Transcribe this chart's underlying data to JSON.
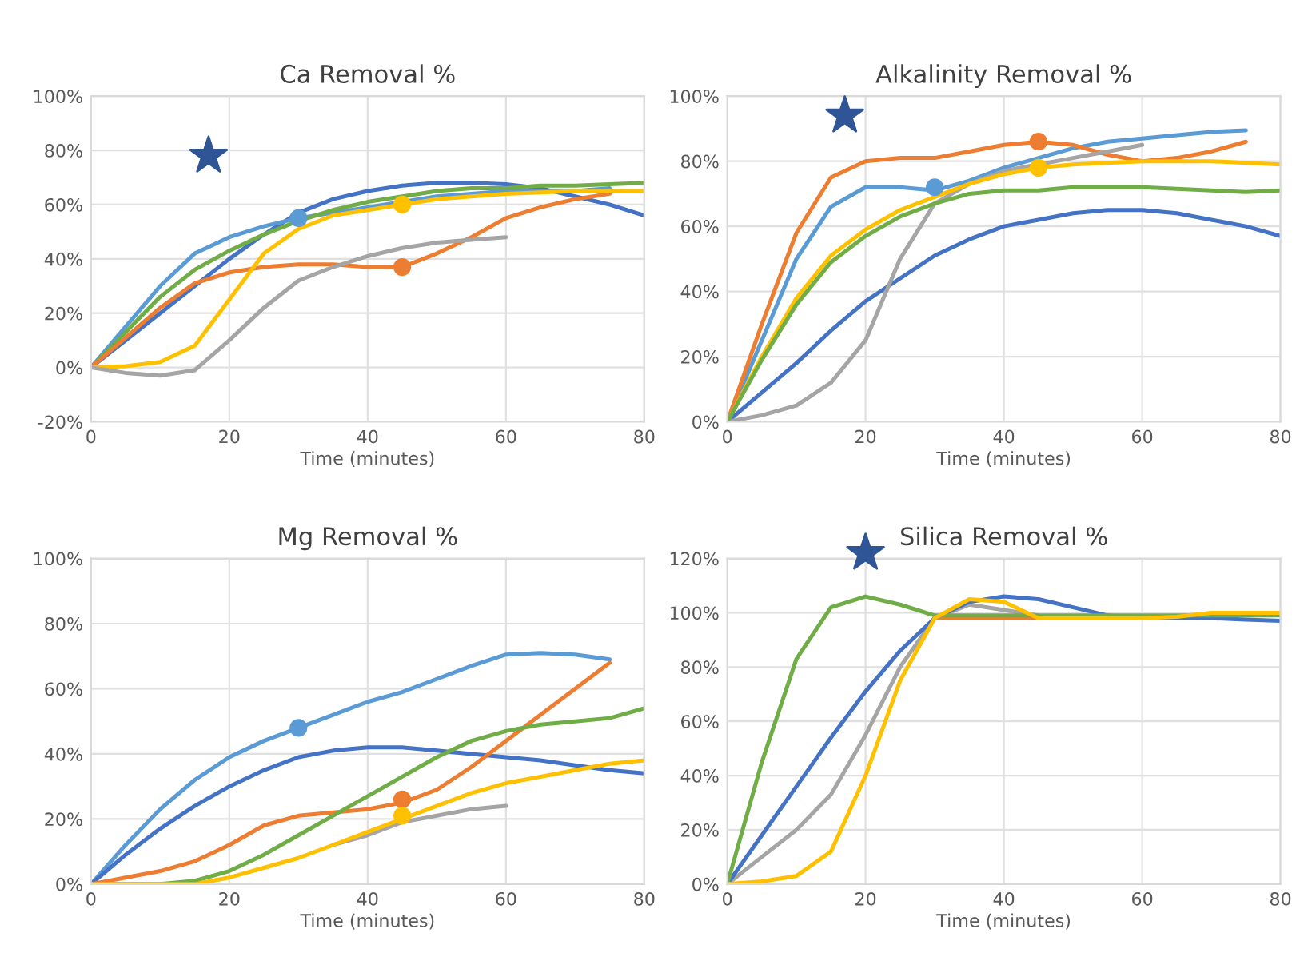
{
  "chart_data": [
    {
      "type": "line",
      "title": "Ca Removal %",
      "xlabel": "Time (minutes)",
      "x": [
        0,
        5,
        10,
        15,
        20,
        25,
        30,
        35,
        40,
        45,
        50,
        55,
        60,
        65,
        70,
        75,
        80
      ],
      "xlim": [
        0,
        80
      ],
      "xticks": [
        0,
        20,
        40,
        60,
        80
      ],
      "ylim": [
        -20,
        100
      ],
      "yticks": [
        {
          "value": -20,
          "label": "-20%"
        },
        {
          "value": 0,
          "label": "0%"
        },
        {
          "value": 20,
          "label": "20%"
        },
        {
          "value": 40,
          "label": "40%"
        },
        {
          "value": 60,
          "label": "60%"
        },
        {
          "value": 80,
          "label": "80%"
        },
        {
          "value": 100,
          "label": "100%"
        }
      ],
      "grid": true,
      "marker": "none",
      "line_style": "solid",
      "series": [
        {
          "color": "#4472c4",
          "values": [
            0,
            10,
            20,
            30,
            40,
            49,
            57,
            62,
            65,
            67,
            68,
            68,
            67.5,
            66,
            63,
            60,
            56
          ]
        },
        {
          "color": "#5b9bd5",
          "values": [
            0,
            15,
            30,
            42,
            48,
            52,
            55,
            57,
            59,
            61,
            63,
            64,
            65,
            65,
            65,
            66,
            null
          ]
        },
        {
          "color": "#70ad47",
          "values": [
            0,
            13,
            26,
            36,
            43,
            49,
            54,
            58,
            61,
            63,
            65,
            66,
            66,
            67,
            67,
            67.5,
            68
          ]
        },
        {
          "color": "#ed7d31",
          "values": [
            0,
            11,
            22,
            31,
            35,
            37,
            38,
            38,
            37,
            37,
            42,
            48,
            55,
            59,
            62,
            64,
            null
          ]
        },
        {
          "color": "#ffc000",
          "values": [
            0,
            0.5,
            2,
            8,
            25,
            42,
            51,
            56,
            58,
            60,
            62,
            63,
            64,
            64.5,
            65,
            65,
            65
          ]
        },
        {
          "color": "#a5a5a5",
          "values": [
            0,
            -2,
            -3,
            -1,
            10,
            22,
            32,
            37,
            41,
            44,
            46,
            47,
            48,
            null,
            null,
            null,
            null
          ]
        },
        {
          "type": "scatter",
          "marker": "circle",
          "color": "#5b9bd5",
          "values": [
            null,
            null,
            null,
            null,
            null,
            null,
            55,
            null,
            null,
            null,
            null,
            null,
            null,
            null,
            null,
            null,
            null
          ]
        },
        {
          "type": "scatter",
          "marker": "circle",
          "color": "#ffc000",
          "values": [
            null,
            null,
            null,
            null,
            null,
            null,
            null,
            null,
            null,
            60,
            null,
            null,
            null,
            null,
            null,
            null,
            null
          ]
        },
        {
          "type": "scatter",
          "marker": "circle",
          "color": "#ed7d31",
          "values": [
            null,
            null,
            null,
            null,
            null,
            null,
            null,
            null,
            null,
            37,
            null,
            null,
            null,
            null,
            null,
            null,
            null
          ]
        }
      ]
    },
    {
      "type": "line",
      "title": "Alkalinity Removal %",
      "xlabel": "Time (minutes)",
      "x": [
        0,
        5,
        10,
        15,
        20,
        25,
        30,
        35,
        40,
        45,
        50,
        55,
        60,
        65,
        70,
        75,
        80
      ],
      "xlim": [
        0,
        80
      ],
      "xticks": [
        0,
        20,
        40,
        60,
        80
      ],
      "ylim": [
        0,
        100
      ],
      "yticks": [
        {
          "value": 0,
          "label": "0%"
        },
        {
          "value": 20,
          "label": "20%"
        },
        {
          "value": 40,
          "label": "40%"
        },
        {
          "value": 60,
          "label": "60%"
        },
        {
          "value": 80,
          "label": "80%"
        },
        {
          "value": 100,
          "label": "100%"
        }
      ],
      "grid": true,
      "marker": "none",
      "line_style": "solid",
      "series": [
        {
          "color": "#4472c4",
          "values": [
            0,
            9,
            18,
            28,
            37,
            44,
            51,
            56,
            60,
            62,
            64,
            65,
            65,
            64,
            62,
            60,
            57
          ]
        },
        {
          "color": "#5b9bd5",
          "values": [
            0,
            25,
            50,
            66,
            72,
            72,
            71,
            74,
            78,
            81,
            84,
            86,
            87,
            88,
            89,
            89.5,
            null
          ]
        },
        {
          "color": "#ed7d31",
          "values": [
            0,
            30,
            58,
            75,
            80,
            81,
            81,
            83,
            85,
            86,
            85,
            82,
            80,
            81,
            83,
            86,
            null
          ]
        },
        {
          "color": "#a5a5a5",
          "values": [
            0,
            2,
            5,
            12,
            25,
            50,
            67,
            73,
            77,
            79,
            81,
            83,
            85,
            null,
            null,
            null,
            null
          ]
        },
        {
          "color": "#ffc000",
          "values": [
            0,
            20,
            38,
            51,
            59,
            65,
            69,
            73,
            76,
            78,
            79,
            79.5,
            80,
            80,
            80,
            79.5,
            79
          ]
        },
        {
          "color": "#70ad47",
          "values": [
            0,
            19,
            36,
            49,
            57,
            63,
            67,
            70,
            71,
            71,
            72,
            72,
            72,
            71.5,
            71,
            70.5,
            71
          ]
        },
        {
          "type": "scatter",
          "marker": "circle",
          "color": "#ed7d31",
          "values": [
            null,
            null,
            null,
            null,
            null,
            null,
            null,
            null,
            null,
            86,
            null,
            null,
            null,
            null,
            null,
            null,
            null
          ]
        },
        {
          "type": "scatter",
          "marker": "circle",
          "color": "#5b9bd5",
          "values": [
            null,
            null,
            null,
            null,
            null,
            null,
            72,
            null,
            null,
            null,
            null,
            null,
            null,
            null,
            null,
            null,
            null
          ]
        },
        {
          "type": "scatter",
          "marker": "circle",
          "color": "#ffc000",
          "values": [
            null,
            null,
            null,
            null,
            null,
            null,
            null,
            null,
            null,
            78,
            null,
            null,
            null,
            null,
            null,
            null,
            null
          ]
        }
      ]
    },
    {
      "type": "line",
      "title": "Mg Removal %",
      "xlabel": "Time (minutes)",
      "x": [
        0,
        5,
        10,
        15,
        20,
        25,
        30,
        35,
        40,
        45,
        50,
        55,
        60,
        65,
        70,
        75,
        80
      ],
      "xlim": [
        0,
        80
      ],
      "xticks": [
        0,
        20,
        40,
        60,
        80
      ],
      "ylim": [
        0,
        100
      ],
      "yticks": [
        {
          "value": 0,
          "label": "0%"
        },
        {
          "value": 20,
          "label": "20%"
        },
        {
          "value": 40,
          "label": "40%"
        },
        {
          "value": 60,
          "label": "60%"
        },
        {
          "value": 80,
          "label": "80%"
        },
        {
          "value": 100,
          "label": "100%"
        }
      ],
      "grid": true,
      "marker": "none",
      "line_style": "solid",
      "series": [
        {
          "color": "#5b9bd5",
          "values": [
            0,
            12,
            23,
            32,
            39,
            44,
            48,
            52,
            56,
            59,
            63,
            67,
            70.5,
            71,
            70.5,
            69,
            null
          ]
        },
        {
          "color": "#4472c4",
          "values": [
            0,
            9,
            17,
            24,
            30,
            35,
            39,
            41,
            42,
            42,
            41,
            40,
            39,
            38,
            36.5,
            35,
            34
          ]
        },
        {
          "color": "#ed7d31",
          "values": [
            0,
            2,
            4,
            7,
            12,
            18,
            21,
            22,
            23,
            25,
            29,
            36,
            44,
            52,
            60,
            68,
            null
          ]
        },
        {
          "color": "#70ad47",
          "values": [
            0,
            0,
            0,
            1,
            4,
            9,
            15,
            21,
            27,
            33,
            39,
            44,
            47,
            49,
            50,
            51,
            54
          ]
        },
        {
          "color": "#a5a5a5",
          "values": [
            null,
            null,
            null,
            null,
            null,
            null,
            null,
            12,
            15,
            19,
            21,
            23,
            24,
            null,
            null,
            null,
            null
          ]
        },
        {
          "color": "#ffc000",
          "values": [
            0,
            0,
            0,
            0,
            2,
            5,
            8,
            12,
            16,
            20,
            24,
            28,
            31,
            33,
            35,
            37,
            38
          ]
        },
        {
          "type": "scatter",
          "marker": "circle",
          "color": "#5b9bd5",
          "values": [
            null,
            null,
            null,
            null,
            null,
            null,
            48,
            null,
            null,
            null,
            null,
            null,
            null,
            null,
            null,
            null,
            null
          ]
        },
        {
          "type": "scatter",
          "marker": "circle",
          "color": "#ed7d31",
          "values": [
            null,
            null,
            null,
            null,
            null,
            null,
            null,
            null,
            null,
            26,
            null,
            null,
            null,
            null,
            null,
            null,
            null
          ]
        },
        {
          "type": "scatter",
          "marker": "circle",
          "color": "#ffc000",
          "values": [
            null,
            null,
            null,
            null,
            null,
            null,
            null,
            null,
            null,
            21,
            null,
            null,
            null,
            null,
            null,
            null,
            null
          ]
        }
      ]
    },
    {
      "type": "line",
      "title": "Silica Removal %",
      "xlabel": "Time (minutes)",
      "x": [
        0,
        5,
        10,
        15,
        20,
        25,
        30,
        35,
        40,
        45,
        50,
        55,
        60,
        65,
        70,
        75,
        80
      ],
      "xlim": [
        0,
        80
      ],
      "xticks": [
        0,
        20,
        40,
        60,
        80
      ],
      "ylim": [
        0,
        120
      ],
      "yticks": [
        {
          "value": 0,
          "label": "0%"
        },
        {
          "value": 20,
          "label": "20%"
        },
        {
          "value": 40,
          "label": "40%"
        },
        {
          "value": 60,
          "label": "60%"
        },
        {
          "value": 80,
          "label": "80%"
        },
        {
          "value": 100,
          "label": "100%"
        },
        {
          "value": 120,
          "label": "120%"
        }
      ],
      "grid": true,
      "marker": "none",
      "line_style": "solid",
      "series": [
        {
          "color": "#ed7d31",
          "values": [
            null,
            null,
            null,
            null,
            null,
            null,
            98,
            98,
            98,
            98,
            98,
            98,
            null,
            null,
            null,
            null,
            null
          ]
        },
        {
          "color": "#a5a5a5",
          "values": [
            0,
            10,
            20,
            33,
            55,
            80,
            98,
            103,
            101,
            99,
            null,
            null,
            null,
            null,
            null,
            null,
            null
          ]
        },
        {
          "color": "#4472c4",
          "values": [
            0,
            18,
            36,
            54,
            71,
            86,
            98,
            104,
            106,
            105,
            102,
            99,
            98,
            98,
            98,
            97.5,
            97
          ]
        },
        {
          "color": "#70ad47",
          "values": [
            0,
            45,
            83,
            102,
            106,
            103,
            99,
            99,
            99,
            99,
            99,
            99,
            99,
            99,
            99,
            99,
            99
          ]
        },
        {
          "color": "#ffc000",
          "values": [
            0,
            1,
            3,
            12,
            40,
            75,
            98,
            105,
            104,
            98,
            98,
            98,
            98,
            98.5,
            100,
            100,
            100
          ]
        }
      ]
    }
  ]
}
